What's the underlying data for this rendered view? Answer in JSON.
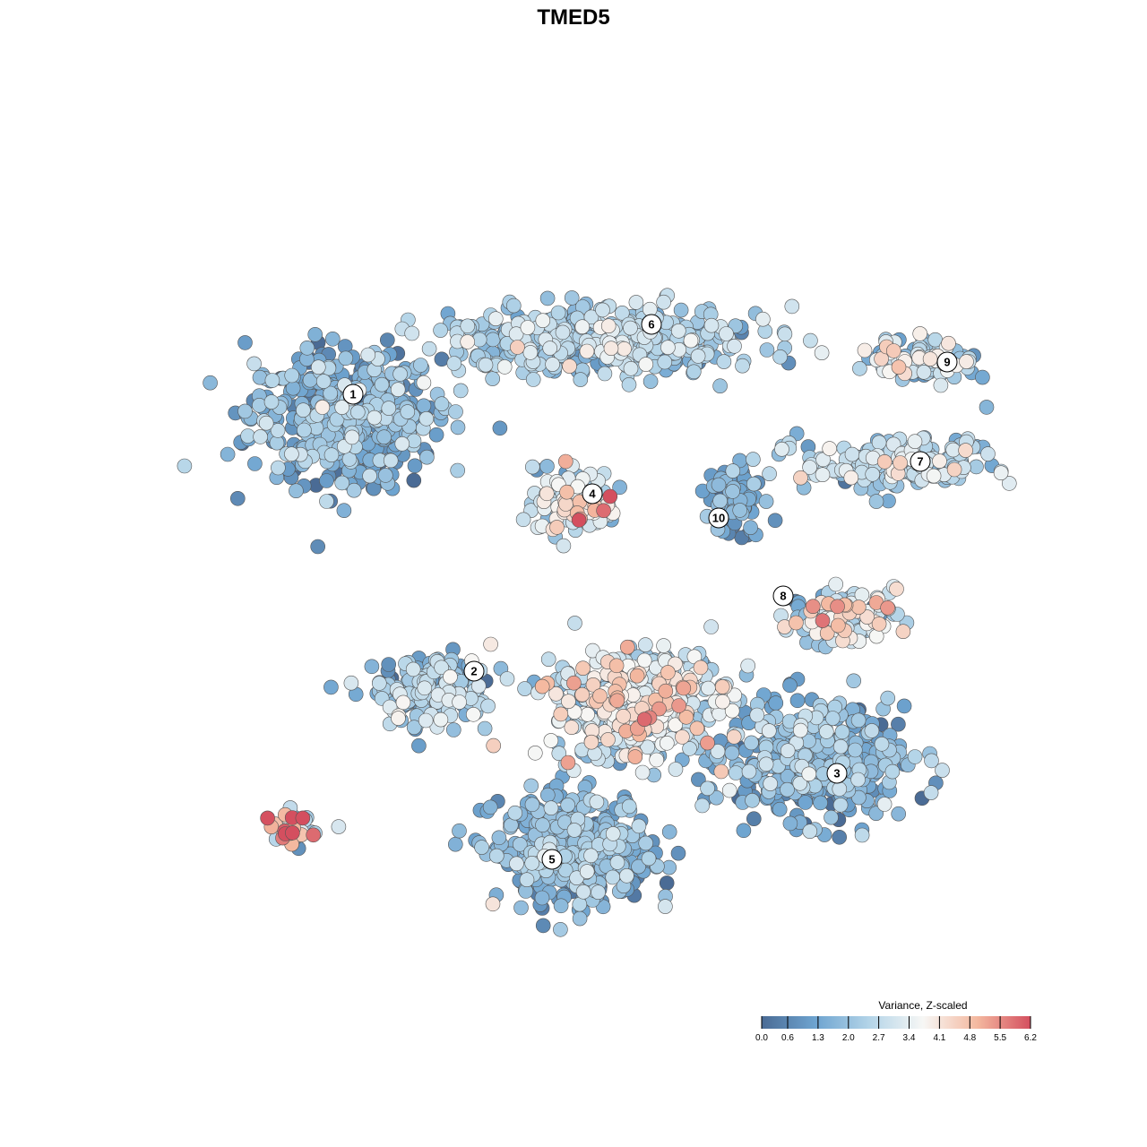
{
  "chart_data": {
    "type": "scatter",
    "title": "TMED5",
    "xlabel": "",
    "ylabel": "",
    "axes_visible": false,
    "grid": false,
    "color_scale": {
      "title": "Variance, Z-scaled",
      "min": 0.0,
      "max": 6.2,
      "ticks": [
        "0.0",
        "0.6",
        "1.3",
        "2.0",
        "2.7",
        "3.4",
        "4.1",
        "4.8",
        "5.5",
        "6.2"
      ],
      "palette": [
        "#4a6b95",
        "#6ea4d0",
        "#b3d4e8",
        "#f7f7f5",
        "#f4b9a0",
        "#d44f5f"
      ],
      "position": "bottom-right"
    },
    "cluster_labels": [
      {
        "label": "1",
        "x": -8.2,
        "y": 7.0
      },
      {
        "label": "2",
        "x": -3.7,
        "y": -3.3
      },
      {
        "label": "3",
        "x": 9.8,
        "y": -7.1
      },
      {
        "label": "4",
        "x": 0.7,
        "y": 3.3
      },
      {
        "label": "5",
        "x": -0.8,
        "y": -10.3
      },
      {
        "label": "6",
        "x": 2.9,
        "y": 9.6
      },
      {
        "label": "7",
        "x": 12.9,
        "y": 4.5
      },
      {
        "label": "8",
        "x": 7.8,
        "y": -0.5
      },
      {
        "label": "9",
        "x": 13.9,
        "y": 8.2
      },
      {
        "label": "10",
        "x": 5.4,
        "y": 2.4
      }
    ],
    "clusters": [
      {
        "id": "1",
        "x": -8.5,
        "y": 6.2,
        "sx": 3.2,
        "sy": 2.2,
        "n": 520,
        "mean_value": 1.4,
        "sd_value": 0.8
      },
      {
        "id": "2",
        "x": -5.3,
        "y": -4.0,
        "sx": 1.8,
        "sy": 1.2,
        "n": 200,
        "mean_value": 1.8,
        "sd_value": 0.9
      },
      {
        "id": "3",
        "x": 9.0,
        "y": -6.7,
        "sx": 3.0,
        "sy": 1.9,
        "n": 420,
        "mean_value": 1.4,
        "sd_value": 0.8
      },
      {
        "id": "4",
        "x": 0.1,
        "y": 3.0,
        "sx": 1.4,
        "sy": 1.1,
        "n": 150,
        "mean_value": 3.0,
        "sd_value": 1.2
      },
      {
        "id": "5",
        "x": 0.0,
        "y": -10.0,
        "sx": 2.6,
        "sy": 1.8,
        "n": 430,
        "mean_value": 1.6,
        "sd_value": 0.7
      },
      {
        "id": "6",
        "x": 1.0,
        "y": 9.0,
        "sx": 5.5,
        "sy": 1.1,
        "n": 440,
        "mean_value": 2.2,
        "sd_value": 0.7
      },
      {
        "id": "7",
        "x": 12.0,
        "y": 4.4,
        "sx": 3.2,
        "sy": 0.9,
        "n": 200,
        "mean_value": 2.4,
        "sd_value": 0.8
      },
      {
        "id": "8",
        "x": 10.0,
        "y": -1.2,
        "sx": 1.8,
        "sy": 0.8,
        "n": 150,
        "mean_value": 2.8,
        "sd_value": 1.2
      },
      {
        "id": "9",
        "x": 13.0,
        "y": 8.3,
        "sx": 1.7,
        "sy": 0.7,
        "n": 110,
        "mean_value": 2.5,
        "sd_value": 1.0
      },
      {
        "id": "10",
        "x": 6.0,
        "y": 3.2,
        "sx": 0.9,
        "sy": 1.2,
        "n": 80,
        "mean_value": 1.0,
        "sd_value": 0.7
      },
      {
        "id": "c",
        "x": 2.5,
        "y": -4.5,
        "sx": 3.0,
        "sy": 1.9,
        "n": 420,
        "mean_value": 3.1,
        "sd_value": 1.0
      },
      {
        "id": "t",
        "x": -10.5,
        "y": -9.2,
        "sx": 0.9,
        "sy": 0.6,
        "n": 35,
        "mean_value": 3.6,
        "sd_value": 1.4
      }
    ],
    "x_range": [
      -18,
      18
    ],
    "y_range": [
      -18,
      18
    ]
  }
}
